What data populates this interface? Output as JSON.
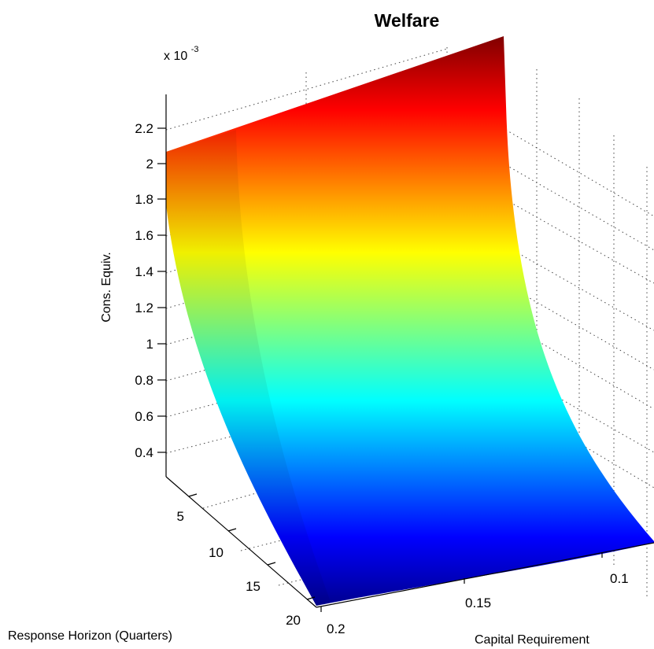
{
  "chart_data": {
    "type": "surface",
    "title": "Welfare",
    "xlabel": "Response Horizon (Quarters)",
    "ylabel": "Capital Requirement",
    "zlabel": "Cons. Equiv.",
    "z_multiplier": "x 10",
    "z_exponent": "-3",
    "x_ticks": [
      "5",
      "10",
      "15",
      "20"
    ],
    "y_ticks": [
      "0.1",
      "0.15",
      "0.2"
    ],
    "z_ticks": [
      "0.4",
      "0.6",
      "0.8",
      "1",
      "1.2",
      "1.4",
      "1.6",
      "1.8",
      "2",
      "2.2"
    ],
    "x_range": [
      1,
      20
    ],
    "y_range": [
      0.08,
      0.2
    ],
    "zlim": [
      0.25,
      2.35
    ],
    "colormap": "jet",
    "grid": true,
    "surface": {
      "description_units": "z in units of 1e-3",
      "y": [
        0.08,
        0.09,
        0.1,
        0.11,
        0.12,
        0.13,
        0.14,
        0.15,
        0.16,
        0.17,
        0.18,
        0.19,
        0.2
      ],
      "z_at_x_first": [
        2.4,
        1.9,
        1.52,
        1.24,
        1.02,
        0.85,
        0.71,
        0.59,
        0.49,
        0.4,
        0.32,
        0.26,
        0.21
      ],
      "z_at_x_last": [
        2.05,
        1.6,
        1.25,
        0.98,
        0.78,
        0.62,
        0.5,
        0.41,
        0.34,
        0.29,
        0.25,
        0.22,
        0.2
      ]
    }
  }
}
